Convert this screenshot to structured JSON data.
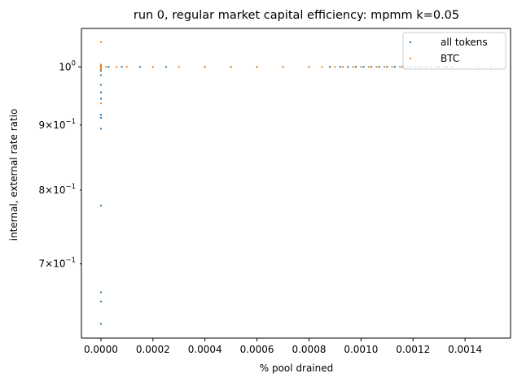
{
  "chart_data": {
    "type": "scatter",
    "title": "run 0, regular market capital efficiency: mpmm k=0.05",
    "xlabel": "% pool drained",
    "ylabel": "internal, external rate ratio",
    "yscale": "log",
    "xlim": [
      -7.5e-05,
      0.001575
    ],
    "ylim": [
      0.612,
      1.072
    ],
    "x_ticks": [
      {
        "value": 0.0,
        "label": "0.0000"
      },
      {
        "value": 0.0002,
        "label": "0.0002"
      },
      {
        "value": 0.0004,
        "label": "0.0004"
      },
      {
        "value": 0.0006,
        "label": "0.0006"
      },
      {
        "value": 0.0008,
        "label": "0.0008"
      },
      {
        "value": 0.001,
        "label": "0.0010"
      },
      {
        "value": 0.0012,
        "label": "0.0012"
      },
      {
        "value": 0.0014,
        "label": "0.0014"
      }
    ],
    "y_ticks": [
      {
        "value": 1.0,
        "base": "10",
        "exp": "0",
        "mant": ""
      },
      {
        "value": 0.9,
        "base": "10",
        "exp": "−1",
        "mant": "9×"
      },
      {
        "value": 0.8,
        "base": "10",
        "exp": "−1",
        "mant": "8×"
      },
      {
        "value": 0.7,
        "base": "10",
        "exp": "−1",
        "mant": "7×"
      }
    ],
    "grid": false,
    "legend_position": "top-right",
    "series": [
      {
        "name": "all tokens",
        "color": "#1f77b4",
        "points": [
          [
            0.0,
            0.628
          ],
          [
            0.0,
            0.654
          ],
          [
            0.0,
            0.665
          ],
          [
            0.0,
            0.778
          ],
          [
            0.0,
            0.894
          ],
          [
            0.0,
            0.912
          ],
          [
            0.0,
            0.917
          ],
          [
            0.0,
            0.944
          ],
          [
            0.0,
            0.955
          ],
          [
            0.0,
            0.968
          ],
          [
            0.0,
            0.985
          ],
          [
            0.0,
            0.993
          ],
          [
            0.0,
            0.996
          ],
          [
            0.0,
            1.0
          ],
          [
            0.0,
            1.002
          ],
          [
            3e-05,
            1.0
          ],
          [
            8e-05,
            1.0
          ],
          [
            0.00015,
            1.0
          ],
          [
            0.00025,
            1.0
          ],
          [
            0.0004,
            1.0
          ],
          [
            0.0005,
            1.0
          ],
          [
            0.0006,
            1.0
          ],
          [
            0.0007,
            1.0
          ],
          [
            0.0008,
            1.0
          ],
          [
            0.00088,
            1.0
          ],
          [
            0.00092,
            1.0
          ],
          [
            0.00095,
            1.0
          ],
          [
            0.00098,
            1.0
          ],
          [
            0.00101,
            1.0
          ],
          [
            0.00104,
            1.0
          ],
          [
            0.00107,
            1.0
          ],
          [
            0.0011,
            1.0
          ],
          [
            0.00113,
            1.0
          ],
          [
            0.00116,
            1.0
          ],
          [
            0.00119,
            1.0
          ],
          [
            0.00121,
            1.0
          ],
          [
            0.00123,
            1.0
          ],
          [
            0.00127,
            1.0
          ],
          [
            0.0013,
            1.0
          ],
          [
            0.00133,
            1.0
          ],
          [
            0.00135,
            1.0
          ],
          [
            0.0015,
            1.0
          ]
        ]
      },
      {
        "name": "BTC",
        "color": "#ff7f0e",
        "points": [
          [
            0.0,
            0.936
          ],
          [
            0.0,
            0.995
          ],
          [
            0.0,
            0.998
          ],
          [
            0.0,
            1.0
          ],
          [
            0.0,
            1.004
          ],
          [
            0.0,
            1.046
          ],
          [
            2e-05,
            1.0
          ],
          [
            6e-05,
            1.0
          ],
          [
            0.0001,
            1.0
          ],
          [
            0.0002,
            1.0
          ],
          [
            0.0003,
            1.0
          ],
          [
            0.0004,
            1.0
          ],
          [
            0.0005,
            1.0
          ],
          [
            0.0006,
            1.0
          ],
          [
            0.0007,
            1.0
          ],
          [
            0.0008,
            1.0
          ],
          [
            0.00085,
            1.0
          ],
          [
            0.0009,
            1.0
          ],
          [
            0.00093,
            1.0
          ],
          [
            0.00097,
            1.0
          ],
          [
            0.001,
            1.0
          ],
          [
            0.00103,
            1.0
          ],
          [
            0.00106,
            1.0
          ],
          [
            0.00109,
            1.0
          ],
          [
            0.00112,
            1.0
          ],
          [
            0.00115,
            1.0
          ],
          [
            0.00118,
            1.0
          ],
          [
            0.00122,
            1.0
          ],
          [
            0.00125,
            1.0
          ],
          [
            0.00129,
            1.0
          ],
          [
            0.00132,
            1.0
          ],
          [
            0.00135,
            1.0
          ],
          [
            0.00145,
            1.0
          ]
        ]
      }
    ]
  }
}
